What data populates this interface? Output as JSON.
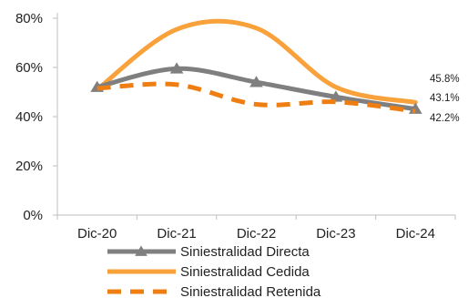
{
  "chart_data": {
    "type": "line",
    "categories": [
      "Dic-20",
      "Dic-21",
      "Dic-22",
      "Dic-23",
      "Dic-24"
    ],
    "ylim": [
      0,
      80
    ],
    "yticks": [
      0,
      20,
      40,
      60,
      80
    ],
    "ytick_labels": [
      "0%",
      "20%",
      "40%",
      "60%",
      "80%"
    ],
    "grid": false,
    "legend_position": "bottom",
    "series": [
      {
        "name": "Siniestralidad Directa",
        "values": [
          52,
          59.5,
          54,
          48,
          43.1
        ],
        "color": "#7f7f7f",
        "style": "solid",
        "marker": "triangle",
        "smooth": true
      },
      {
        "name": "Siniestralidad Cedida",
        "values": [
          51,
          75.5,
          76,
          52,
          45.8
        ],
        "color": "#f9a13a",
        "style": "solid",
        "marker": "none",
        "smooth": true
      },
      {
        "name": "Siniestralidad Retenida",
        "values": [
          51.5,
          53,
          45,
          46,
          42.2
        ],
        "color": "#ee7d12",
        "style": "dashed",
        "marker": "none",
        "smooth": true
      }
    ],
    "data_labels": [
      {
        "series": "Siniestralidad Cedida",
        "category": "Dic-24",
        "text": "45.8%"
      },
      {
        "series": "Siniestralidad Directa",
        "category": "Dic-24",
        "text": "43.1%"
      },
      {
        "series": "Siniestralidad Retenida",
        "category": "Dic-24",
        "text": "42.2%"
      }
    ]
  }
}
